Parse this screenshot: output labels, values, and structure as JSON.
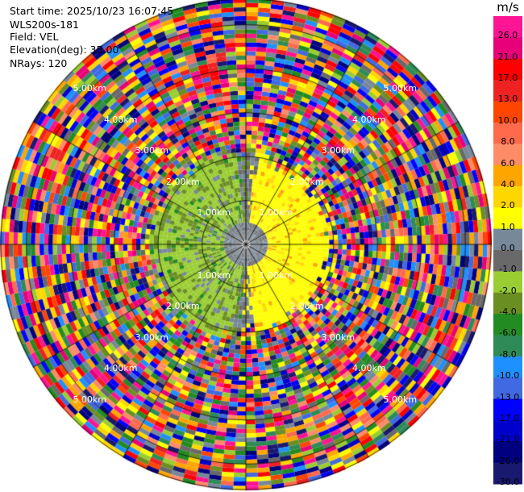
{
  "header": {
    "start_time": "Start time: 2025/10/23 16:07:45",
    "instrument": "WLS200s-181",
    "field": "Field: VEL",
    "elevation": "Elevation(deg): 35.00",
    "nrays": "NRays: 120"
  },
  "chart_data": {
    "type": "heatmap",
    "projection": "polar-ppi",
    "field": "VEL",
    "nrays": 120,
    "range_rings_km": [
      1,
      2,
      3,
      4,
      5
    ],
    "ring_labels": [
      "1.00km",
      "2.00km",
      "3.00km",
      "4.00km",
      "5.00km"
    ],
    "max_range_km": 5.6,
    "colorbar": {
      "unit": "m/s",
      "ticks": [
        "26.0",
        "21.0",
        "17.0",
        "13.0",
        "10.0",
        "8.0",
        "6.0",
        "4.0",
        "2.0",
        "1.0",
        "0.0",
        "-1.0",
        "-2.0",
        "-4.0",
        "-6.0",
        "-8.0",
        "-10.0",
        "-13.0",
        "-17.0",
        "-21.0",
        "-26.0",
        "-30.0"
      ],
      "colors": [
        "#ff1493",
        "#e8007a",
        "#ff0000",
        "#ee2222",
        "#ff4500",
        "#ff6a4d",
        "#ff8c69",
        "#ffa500",
        "#ffd700",
        "#ffff00",
        "#778899",
        "#696969",
        "#9acd32",
        "#6b8e23",
        "#228b22",
        "#2e8b57",
        "#1e90ff",
        "#4169e1",
        "#0000ff",
        "#0000cd",
        "#000080",
        "#191970"
      ]
    },
    "velocity_structure": {
      "inner_negative_km": 2.2,
      "inner_positive_km": 2.0,
      "noise_beyond_km": 2.3
    }
  }
}
